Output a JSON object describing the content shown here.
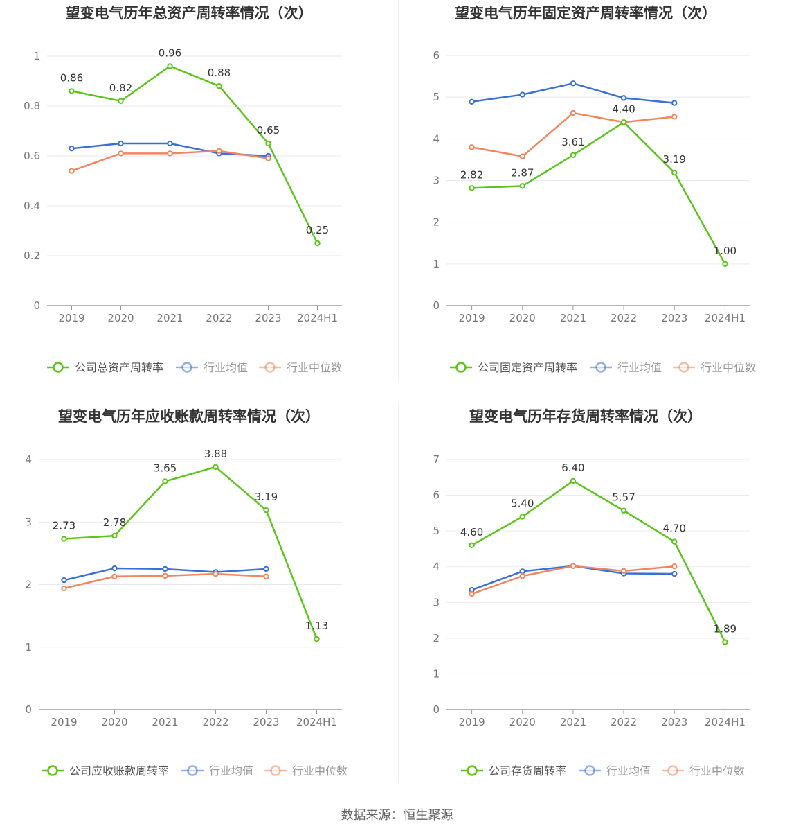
{
  "footer": {
    "source": "数据来源：恒生聚源"
  },
  "colors": {
    "company": "#5cc51c",
    "average": "#3b6fd8",
    "median": "#f0865e",
    "grid": "#e6e9f0",
    "axis": "#999999"
  },
  "chart_data": [
    {
      "type": "line",
      "title": "望变电气历年总资产周转率情况（次）",
      "categories": [
        "2019",
        "2020",
        "2021",
        "2022",
        "2023",
        "2024H1"
      ],
      "y_ticks": [
        "0",
        "0.2",
        "0.4",
        "0.6",
        "0.8",
        "1"
      ],
      "ylim": [
        0,
        1
      ],
      "legend_position": "bottom",
      "series": [
        {
          "name": "公司总资产周转率",
          "key": "company",
          "values": [
            0.86,
            0.82,
            0.96,
            0.88,
            0.65,
            0.25
          ],
          "labels": [
            "0.86",
            "0.82",
            "0.96",
            "0.88",
            "0.65",
            "0.25"
          ]
        },
        {
          "name": "行业均值",
          "key": "average",
          "values": [
            0.63,
            0.65,
            0.65,
            0.61,
            0.6,
            null
          ]
        },
        {
          "name": "行业中位数",
          "key": "median",
          "values": [
            0.54,
            0.61,
            0.61,
            0.62,
            0.59,
            null
          ]
        }
      ]
    },
    {
      "type": "line",
      "title": "望变电气历年固定资产周转率情况（次）",
      "categories": [
        "2019",
        "2020",
        "2021",
        "2022",
        "2023",
        "2024H1"
      ],
      "y_ticks": [
        "0",
        "1",
        "2",
        "3",
        "4",
        "5",
        "6"
      ],
      "ylim": [
        0,
        6
      ],
      "legend_position": "bottom",
      "series": [
        {
          "name": "公司固定资产周转率",
          "key": "company",
          "values": [
            2.82,
            2.87,
            3.61,
            4.4,
            3.19,
            1.0
          ],
          "labels": [
            "2.82",
            "2.87",
            "3.61",
            "4.40",
            "3.19",
            "1.00"
          ]
        },
        {
          "name": "行业均值",
          "key": "average",
          "values": [
            4.89,
            5.06,
            5.33,
            4.98,
            4.86,
            null
          ]
        },
        {
          "name": "行业中位数",
          "key": "median",
          "values": [
            3.8,
            3.58,
            4.62,
            4.4,
            4.53,
            null
          ]
        }
      ]
    },
    {
      "type": "line",
      "title": "望变电气历年应收账款周转率情况（次）",
      "categories": [
        "2019",
        "2020",
        "2021",
        "2022",
        "2023",
        "2024H1"
      ],
      "y_ticks": [
        "0",
        "1",
        "2",
        "3",
        "4"
      ],
      "ylim": [
        0,
        4
      ],
      "legend_position": "bottom",
      "series": [
        {
          "name": "公司应收账款周转率",
          "key": "company",
          "values": [
            2.73,
            2.78,
            3.65,
            3.88,
            3.19,
            1.13
          ],
          "labels": [
            "2.73",
            "2.78",
            "3.65",
            "3.88",
            "3.19",
            "1.13"
          ]
        },
        {
          "name": "行业均值",
          "key": "average",
          "values": [
            2.07,
            2.26,
            2.25,
            2.2,
            2.25,
            null
          ]
        },
        {
          "name": "行业中位数",
          "key": "median",
          "values": [
            1.94,
            2.13,
            2.14,
            2.17,
            2.13,
            null
          ]
        }
      ]
    },
    {
      "type": "line",
      "title": "望变电气历年存货周转率情况（次）",
      "categories": [
        "2019",
        "2020",
        "2021",
        "2022",
        "2023",
        "2024H1"
      ],
      "y_ticks": [
        "0",
        "1",
        "2",
        "3",
        "4",
        "5",
        "6",
        "7"
      ],
      "ylim": [
        0,
        7
      ],
      "legend_position": "bottom",
      "series": [
        {
          "name": "公司存货周转率",
          "key": "company",
          "values": [
            4.6,
            5.4,
            6.4,
            5.57,
            4.7,
            1.89
          ],
          "labels": [
            "4.60",
            "5.40",
            "6.40",
            "5.57",
            "4.70",
            "1.89"
          ]
        },
        {
          "name": "行业均值",
          "key": "average",
          "values": [
            3.35,
            3.87,
            4.02,
            3.81,
            3.8,
            null
          ]
        },
        {
          "name": "行业中位数",
          "key": "median",
          "values": [
            3.24,
            3.74,
            4.02,
            3.88,
            4.01,
            null
          ]
        }
      ]
    }
  ]
}
